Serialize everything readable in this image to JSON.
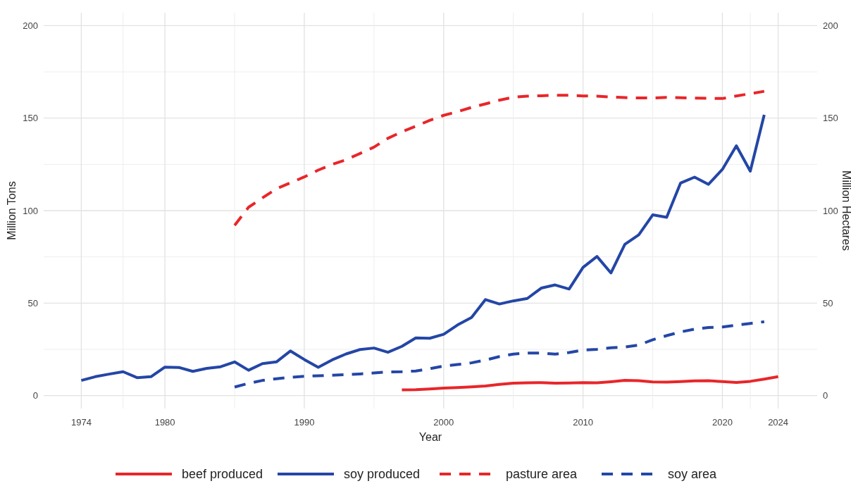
{
  "chart_data": {
    "type": "line",
    "xlabel": "Year",
    "ylabel": "Million Tons",
    "y2label": "Million Hectares",
    "xlim": [
      1971.3,
      2026.8
    ],
    "xticks": [
      1974,
      {
        "value": 1977,
        "label": null
      },
      1980,
      {
        "value": 1985,
        "label": null
      },
      1990,
      {
        "value": 1995,
        "label": null
      },
      2000,
      {
        "value": 2005,
        "label": null
      },
      2010,
      {
        "value": 2015,
        "label": null
      },
      2020,
      {
        "value": 2022,
        "label": null
      },
      2024
    ],
    "ylim": [
      -7,
      207
    ],
    "yticks": [
      0,
      {
        "value": 25,
        "label": null
      },
      50,
      {
        "value": 75,
        "label": null
      },
      100,
      {
        "value": 125,
        "label": null
      },
      150,
      {
        "value": 175,
        "label": null
      },
      200
    ],
    "y2lim": [
      -7,
      207
    ],
    "y2ticks": [
      0,
      50,
      100,
      150,
      200
    ],
    "grid": true,
    "legend": "bottom",
    "line_style": "solid",
    "series": [
      {
        "name": "beef produced",
        "color": "#e8262a",
        "x": [
          1997,
          1998,
          1999,
          2000,
          2001,
          2002,
          2003,
          2004,
          2005,
          2006,
          2007,
          2008,
          2009,
          2010,
          2011,
          2012,
          2013,
          2014,
          2015,
          2016,
          2017,
          2018,
          2019,
          2020,
          2021,
          2022,
          2023,
          2024
        ],
        "values": [
          3.1,
          3.2,
          3.6,
          4.0,
          4.3,
          4.7,
          5.2,
          6.0,
          6.7,
          6.9,
          7.0,
          6.7,
          6.8,
          7.0,
          6.9,
          7.5,
          8.2,
          8.0,
          7.4,
          7.3,
          7.6,
          7.9,
          8.0,
          7.6,
          7.1,
          7.7,
          8.9,
          10.2
        ]
      },
      {
        "name": "soy produced",
        "color": "#2446a6",
        "x": [
          1974,
          1975,
          1976,
          1977,
          1978,
          1979,
          1980,
          1981,
          1982,
          1983,
          1984,
          1985,
          1986,
          1987,
          1988,
          1989,
          1990,
          1991,
          1992,
          1993,
          1994,
          1995,
          1996,
          1997,
          1998,
          1999,
          2000,
          2001,
          2002,
          2003,
          2004,
          2005,
          2006,
          2007,
          2008,
          2009,
          2010,
          2011,
          2012,
          2013,
          2014,
          2015,
          2016,
          2017,
          2018,
          2019,
          2020,
          2021,
          2022,
          2023
        ],
        "values": [
          8.2,
          10.2,
          11.6,
          12.9,
          9.7,
          10.2,
          15.4,
          15.2,
          13.1,
          14.7,
          15.6,
          18.2,
          13.7,
          17.3,
          18.2,
          24.1,
          19.5,
          15.3,
          19.3,
          22.5,
          24.9,
          25.7,
          23.4,
          26.6,
          31.2,
          31.0,
          33.1,
          38.2,
          42.2,
          51.9,
          49.5,
          51.2,
          52.5,
          58.1,
          59.8,
          57.6,
          69.3,
          75.2,
          66.3,
          81.8,
          86.9,
          97.7,
          96.4,
          114.9,
          118.1,
          114.2,
          122.3,
          135.0,
          121.3,
          151.8
        ]
      },
      {
        "name": "pasture area",
        "color": "#e8262a",
        "line_style": "dashed",
        "x": [
          1985,
          1986,
          1987,
          1988,
          1989,
          1990,
          1991,
          1992,
          1993,
          1994,
          1995,
          1996,
          1997,
          1998,
          1999,
          2000,
          2001,
          2002,
          2003,
          2004,
          2005,
          2006,
          2007,
          2008,
          2009,
          2010,
          2011,
          2012,
          2013,
          2014,
          2015,
          2016,
          2017,
          2018,
          2019,
          2020,
          2021,
          2022,
          2023
        ],
        "values": [
          92.0,
          101.8,
          106.9,
          111.8,
          115.0,
          118.2,
          121.9,
          125.0,
          127.5,
          130.9,
          134.3,
          139.1,
          142.6,
          145.6,
          148.8,
          151.5,
          153.5,
          155.8,
          157.7,
          159.7,
          161.3,
          161.9,
          162.1,
          162.4,
          162.3,
          162.0,
          161.9,
          161.4,
          161.1,
          160.9,
          160.9,
          161.2,
          161.0,
          160.8,
          160.7,
          160.6,
          162.0,
          163.2,
          164.5
        ]
      },
      {
        "name": "soy area",
        "color": "#2446a6",
        "line_style": "dashed",
        "x": [
          1985,
          1986,
          1987,
          1988,
          1989,
          1990,
          1991,
          1992,
          1993,
          1994,
          1995,
          1996,
          1997,
          1998,
          1999,
          2000,
          2001,
          2002,
          2003,
          2004,
          2005,
          2006,
          2007,
          2008,
          2009,
          2010,
          2011,
          2012,
          2013,
          2014,
          2015,
          2016,
          2017,
          2018,
          2019,
          2020,
          2021,
          2022,
          2023
        ],
        "values": [
          4.6,
          6.6,
          8.2,
          9.1,
          9.9,
          10.4,
          10.7,
          11.0,
          11.3,
          11.7,
          12.2,
          12.8,
          12.9,
          13.3,
          14.5,
          16.0,
          16.8,
          17.7,
          19.2,
          21.1,
          22.4,
          23.0,
          23.0,
          22.4,
          23.3,
          24.6,
          25.0,
          25.8,
          26.2,
          27.3,
          30.2,
          32.4,
          34.4,
          35.9,
          36.8,
          37.1,
          38.1,
          39.0,
          39.9
        ]
      }
    ]
  }
}
